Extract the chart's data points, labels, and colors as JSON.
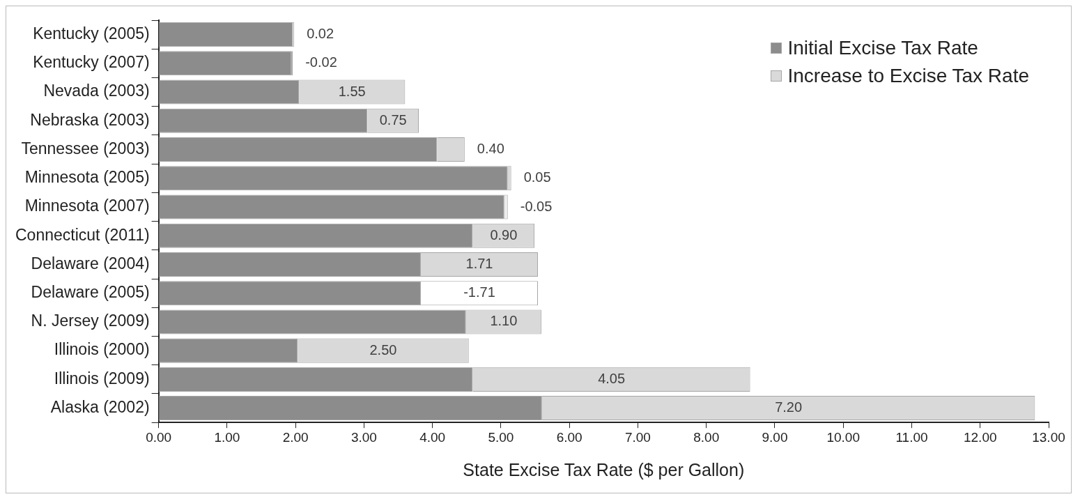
{
  "chart_data": {
    "type": "bar",
    "orientation": "horizontal",
    "stacked": true,
    "xlabel": "State Excise Tax Rate ($ per Gallon)",
    "categories": [
      "Kentucky (2005)",
      "Kentucky (2007)",
      "Nevada (2003)",
      "Nebraska (2003)",
      "Tennessee (2003)",
      "Minnesota (2005)",
      "Minnesota (2007)",
      "Connecticut (2011)",
      "Delaware (2004)",
      "Delaware (2005)",
      "N. Jersey (2009)",
      "Illinois (2000)",
      "Illinois (2009)",
      "Alaska (2002)"
    ],
    "series": [
      {
        "name": "Initial Excise Tax Rate",
        "color": "#8c8c8c",
        "values": [
          1.96,
          1.94,
          2.05,
          3.05,
          4.07,
          5.1,
          5.05,
          4.59,
          3.83,
          3.83,
          4.49,
          2.03,
          4.59,
          5.6
        ]
      },
      {
        "name": "Increase to Excise Tax Rate",
        "color": "#d9d9d9",
        "colors": [
          "#d9d9d9",
          "#6e6e6e",
          "#d9d9d9",
          "#d9d9d9",
          "#d9d9d9",
          "#d9d9d9",
          "#ececec",
          "#d9d9d9",
          "#d9d9d9",
          "#ffffff",
          "#d9d9d9",
          "#d9d9d9",
          "#d9d9d9",
          "#d9d9d9"
        ],
        "base": [
          1.96,
          1.96,
          2.05,
          3.05,
          4.07,
          5.1,
          5.1,
          4.59,
          3.83,
          5.54,
          4.49,
          2.03,
          4.59,
          5.6
        ],
        "values": [
          0.02,
          -0.02,
          1.55,
          0.75,
          0.4,
          0.05,
          -0.05,
          0.9,
          1.71,
          -1.71,
          1.1,
          2.5,
          4.05,
          7.2
        ],
        "value_labels": [
          "0.02",
          "-0.02",
          "1.55",
          "0.75",
          "0.40",
          "0.05",
          "-0.05",
          "0.90",
          "1.71",
          "-1.71",
          "1.10",
          "2.50",
          "4.05",
          "7.20"
        ]
      }
    ],
    "xlim": [
      0,
      13
    ],
    "xticks": [
      {
        "value": 0,
        "label": "0.00"
      },
      {
        "value": 1,
        "label": "1.00"
      },
      {
        "value": 2,
        "label": "2.00"
      },
      {
        "value": 3,
        "label": "3.00"
      },
      {
        "value": 4,
        "label": "4.00"
      },
      {
        "value": 5,
        "label": "5.00"
      },
      {
        "value": 6,
        "label": "6.00"
      },
      {
        "value": 7,
        "label": "7.00"
      },
      {
        "value": 8,
        "label": "8.00"
      },
      {
        "value": 9,
        "label": "9.00"
      },
      {
        "value": 10,
        "label": "10.00"
      },
      {
        "value": 11,
        "label": "11.00"
      },
      {
        "value": 12,
        "label": "12.00"
      },
      {
        "value": 13,
        "label": "13.00"
      }
    ],
    "grid": false,
    "legend": "top right"
  }
}
